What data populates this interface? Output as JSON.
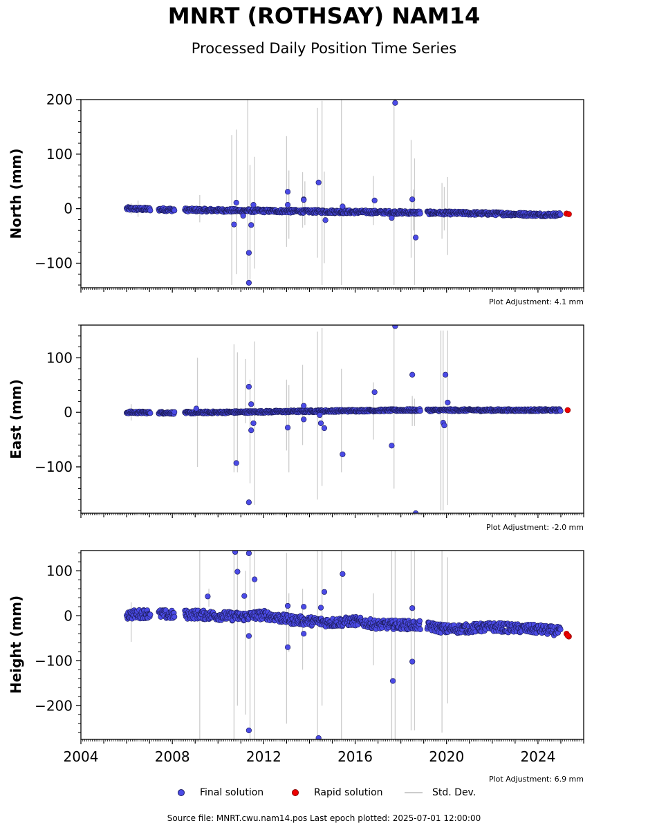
{
  "title": "MNRT (ROTHSAY) NAM14",
  "subtitle": "Processed Daily Position Time Series",
  "source_note": "Source file: MNRT.cwu.nam14.pos  Last epoch plotted: 2025-07-01 12:00:00",
  "legend": {
    "final": "Final solution",
    "rapid": "Rapid solution",
    "std": "Std. Dev."
  },
  "colors": {
    "final": "#4b4be6",
    "rapid": "#ee0000",
    "std": "#cccccc"
  },
  "chart_data": [
    {
      "type": "scatter",
      "ylabel": "North (mm)",
      "adjustment": "Plot Adjustment: 4.1 mm",
      "xlim": [
        2004.0,
        2026.0
      ],
      "ylim": [
        -145,
        200
      ],
      "yticks": [
        -100,
        0,
        100,
        200
      ],
      "xticks": [
        2004,
        2008,
        2012,
        2016,
        2020,
        2024
      ],
      "show_xtick_labels": false,
      "trend": [
        [
          2006.0,
          0
        ],
        [
          2007.0,
          -1
        ],
        [
          2008.0,
          -2
        ],
        [
          2010.0,
          -3
        ],
        [
          2012.0,
          -4
        ],
        [
          2014.0,
          -5
        ],
        [
          2016.0,
          -6
        ],
        [
          2018.0,
          -7
        ],
        [
          2020.0,
          -8
        ],
        [
          2022.0,
          -9
        ],
        [
          2024.0,
          -11
        ],
        [
          2025.0,
          -11
        ]
      ],
      "gaps": [
        [
          2007.05,
          2007.4
        ],
        [
          2008.1,
          2008.55
        ],
        [
          2018.85,
          2019.15
        ]
      ],
      "scatter": 3,
      "outliers": [
        [
          2010.7,
          -29
        ],
        [
          2010.8,
          11
        ],
        [
          2011.1,
          -13
        ],
        [
          2011.35,
          -81
        ],
        [
          2011.35,
          -136
        ],
        [
          2011.45,
          -30
        ],
        [
          2011.55,
          7
        ],
        [
          2013.05,
          31
        ],
        [
          2013.05,
          7
        ],
        [
          2013.75,
          17
        ],
        [
          2013.75,
          16
        ],
        [
          2014.4,
          48
        ],
        [
          2014.7,
          -21
        ],
        [
          2015.45,
          4
        ],
        [
          2016.85,
          15
        ],
        [
          2017.6,
          -17
        ],
        [
          2017.75,
          194
        ],
        [
          2018.5,
          17
        ],
        [
          2018.65,
          -53
        ]
      ],
      "std_bars": [
        [
          2010.6,
          -140,
          135
        ],
        [
          2010.8,
          -120,
          145
        ],
        [
          2011.3,
          -140,
          200
        ],
        [
          2011.4,
          -130,
          80
        ],
        [
          2011.6,
          -110,
          95
        ],
        [
          2013.0,
          -70,
          133
        ],
        [
          2013.1,
          -55,
          70
        ],
        [
          2013.7,
          -35,
          67
        ],
        [
          2013.8,
          -30,
          50
        ],
        [
          2014.35,
          -90,
          185
        ],
        [
          2014.55,
          -140,
          198
        ],
        [
          2014.65,
          -100,
          68
        ],
        [
          2015.4,
          -140,
          200
        ],
        [
          2016.8,
          -30,
          60
        ],
        [
          2017.7,
          -140,
          200
        ],
        [
          2018.45,
          -90,
          126
        ],
        [
          2018.55,
          -40,
          35
        ],
        [
          2018.6,
          -140,
          92
        ],
        [
          2019.8,
          -55,
          47
        ],
        [
          2019.9,
          -40,
          40
        ],
        [
          2020.05,
          -85,
          58
        ],
        [
          2006.2,
          -10,
          10
        ],
        [
          2009.2,
          -25,
          25
        ],
        [
          2006.5,
          -15,
          15
        ]
      ],
      "rapid": [
        [
          2025.25,
          -9
        ],
        [
          2025.35,
          -10
        ]
      ]
    },
    {
      "type": "scatter",
      "ylabel": "East (mm)",
      "adjustment": "Plot Adjustment: -2.0 mm",
      "xlim": [
        2004.0,
        2026.0
      ],
      "ylim": [
        -185,
        160
      ],
      "yticks": [
        -100,
        0,
        100
      ],
      "xticks": [
        2004,
        2008,
        2012,
        2016,
        2020,
        2024
      ],
      "show_xtick_labels": false,
      "trend": [
        [
          2006.0,
          0
        ],
        [
          2008.0,
          -1
        ],
        [
          2010.0,
          0
        ],
        [
          2012.0,
          1
        ],
        [
          2014.0,
          2
        ],
        [
          2016.0,
          3
        ],
        [
          2018.0,
          4
        ],
        [
          2020.0,
          4
        ],
        [
          2022.0,
          4
        ],
        [
          2024.0,
          4
        ],
        [
          2025.0,
          4
        ]
      ],
      "gaps": [
        [
          2007.05,
          2007.4
        ],
        [
          2008.1,
          2008.55
        ],
        [
          2018.85,
          2019.15
        ]
      ],
      "scatter": 2,
      "outliers": [
        [
          2009.05,
          7
        ],
        [
          2010.8,
          -93
        ],
        [
          2011.35,
          47
        ],
        [
          2011.35,
          -165
        ],
        [
          2011.45,
          15
        ],
        [
          2011.45,
          -33
        ],
        [
          2011.55,
          -20
        ],
        [
          2013.05,
          -28
        ],
        [
          2013.75,
          12
        ],
        [
          2013.75,
          -13
        ],
        [
          2014.45,
          -5
        ],
        [
          2014.5,
          -20
        ],
        [
          2014.65,
          -29
        ],
        [
          2015.45,
          -77
        ],
        [
          2016.85,
          37
        ],
        [
          2017.6,
          -61
        ],
        [
          2017.75,
          158
        ],
        [
          2018.5,
          69
        ],
        [
          2018.65,
          -185
        ],
        [
          2019.85,
          -19
        ],
        [
          2019.9,
          -24
        ],
        [
          2019.95,
          69
        ],
        [
          2020.05,
          18
        ]
      ],
      "std_bars": [
        [
          2009.1,
          -100,
          100
        ],
        [
          2010.7,
          -110,
          125
        ],
        [
          2010.85,
          -110,
          110
        ],
        [
          2011.2,
          -20,
          98
        ],
        [
          2011.4,
          -130,
          60
        ],
        [
          2011.6,
          -170,
          130
        ],
        [
          2013.0,
          -70,
          60
        ],
        [
          2013.1,
          -110,
          50
        ],
        [
          2013.7,
          -60,
          87
        ],
        [
          2014.35,
          -160,
          148
        ],
        [
          2014.55,
          -135,
          155
        ],
        [
          2015.4,
          -110,
          80
        ],
        [
          2016.8,
          -50,
          55
        ],
        [
          2017.7,
          -140,
          160
        ],
        [
          2018.5,
          -25,
          30
        ],
        [
          2018.6,
          -25,
          25
        ],
        [
          2019.75,
          -180,
          150
        ],
        [
          2019.85,
          -180,
          150
        ],
        [
          2020.05,
          -170,
          150
        ],
        [
          2006.2,
          -15,
          15
        ]
      ],
      "rapid": [
        [
          2025.3,
          4
        ]
      ]
    },
    {
      "type": "scatter",
      "ylabel": "Height (mm)",
      "adjustment": "Plot Adjustment: 6.9 mm",
      "xlim": [
        2004.0,
        2026.0
      ],
      "ylim": [
        -275,
        145
      ],
      "yticks": [
        -200,
        -100,
        0,
        100
      ],
      "xticks": [
        2004,
        2008,
        2012,
        2016,
        2020,
        2024
      ],
      "xtick_labels": [
        "2004",
        "2008",
        "2012",
        "2016",
        "2020",
        "2024"
      ],
      "show_xtick_labels": true,
      "trend": [
        [
          2006.0,
          2
        ],
        [
          2007.0,
          5
        ],
        [
          2008.0,
          2
        ],
        [
          2009.0,
          3
        ],
        [
          2010.0,
          0
        ],
        [
          2011.0,
          -2
        ],
        [
          2012.0,
          2
        ],
        [
          2013.0,
          -8
        ],
        [
          2014.0,
          -12
        ],
        [
          2015.0,
          -15
        ],
        [
          2016.0,
          -12
        ],
        [
          2017.0,
          -20
        ],
        [
          2018.0,
          -20
        ],
        [
          2019.0,
          -22
        ],
        [
          2020.0,
          -30
        ],
        [
          2021.0,
          -28
        ],
        [
          2022.0,
          -25
        ],
        [
          2023.0,
          -28
        ],
        [
          2024.0,
          -30
        ],
        [
          2025.0,
          -35
        ]
      ],
      "gaps": [
        [
          2007.05,
          2007.4
        ],
        [
          2008.1,
          2008.55
        ],
        [
          2018.85,
          2019.15
        ]
      ],
      "scatter": 10,
      "outliers": [
        [
          2009.55,
          43
        ],
        [
          2010.75,
          142
        ],
        [
          2010.85,
          98
        ],
        [
          2011.15,
          44
        ],
        [
          2011.35,
          139
        ],
        [
          2011.35,
          -45
        ],
        [
          2011.35,
          -255
        ],
        [
          2011.6,
          81
        ],
        [
          2013.05,
          -70
        ],
        [
          2013.05,
          22
        ],
        [
          2013.75,
          20
        ],
        [
          2013.75,
          -40
        ],
        [
          2014.4,
          -272
        ],
        [
          2014.5,
          18
        ],
        [
          2014.65,
          53
        ],
        [
          2015.45,
          93
        ],
        [
          2017.65,
          -145
        ],
        [
          2018.5,
          17
        ],
        [
          2018.5,
          -102
        ]
      ],
      "std_bars": [
        [
          2006.2,
          -58,
          30
        ],
        [
          2009.2,
          -275,
          145
        ],
        [
          2009.6,
          20,
          60
        ],
        [
          2010.7,
          -275,
          145
        ],
        [
          2010.85,
          -200,
          145
        ],
        [
          2011.2,
          -220,
          100
        ],
        [
          2011.4,
          -275,
          145
        ],
        [
          2011.6,
          -275,
          145
        ],
        [
          2013.0,
          -240,
          140
        ],
        [
          2013.1,
          -80,
          50
        ],
        [
          2013.7,
          -120,
          60
        ],
        [
          2014.35,
          -275,
          145
        ],
        [
          2014.55,
          -200,
          145
        ],
        [
          2015.4,
          -275,
          145
        ],
        [
          2016.8,
          -110,
          50
        ],
        [
          2017.6,
          -275,
          145
        ],
        [
          2017.75,
          -275,
          145
        ],
        [
          2018.45,
          -255,
          145
        ],
        [
          2018.6,
          -255,
          145
        ],
        [
          2019.8,
          -260,
          145
        ],
        [
          2020.05,
          -195,
          130
        ]
      ],
      "rapid": [
        [
          2025.25,
          -40
        ],
        [
          2025.35,
          -46
        ],
        [
          2025.3,
          -44
        ]
      ]
    }
  ]
}
